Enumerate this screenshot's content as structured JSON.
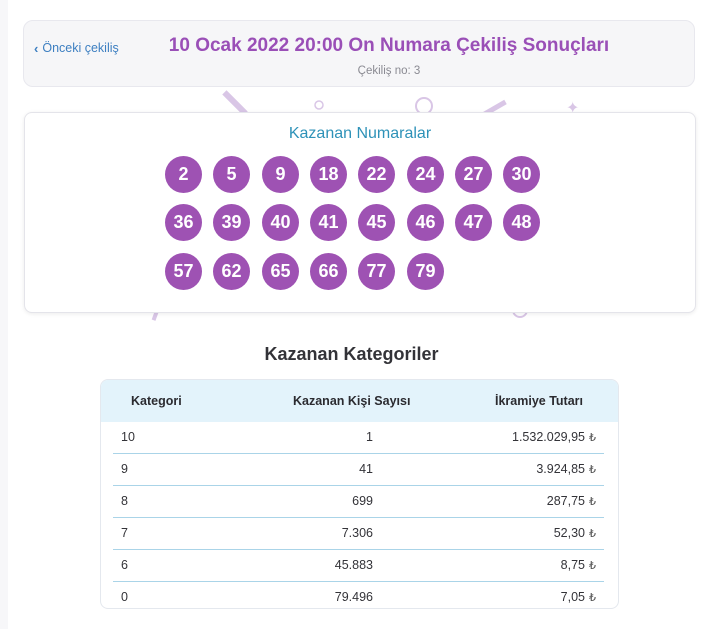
{
  "header": {
    "back_label": "Önceki çekiliş",
    "title": "10 Ocak 2022 20:00 On Numara Çekiliş Sonuçları",
    "subtitle": "Çekiliş no: 3"
  },
  "numbers": {
    "title": "Kazanan Numaralar",
    "balls": [
      "2",
      "5",
      "9",
      "18",
      "22",
      "24",
      "27",
      "30",
      "36",
      "39",
      "40",
      "41",
      "45",
      "46",
      "47",
      "48",
      "57",
      "62",
      "65",
      "66",
      "77",
      "79"
    ],
    "ball_color": "#9e52b3"
  },
  "categories": {
    "title": "Kazanan Kategoriler",
    "headers": [
      "Kategori",
      "Kazanan Kişi Sayısı",
      "İkramiye Tutarı"
    ],
    "rows": [
      {
        "category": "10",
        "winners": "1",
        "prize": "1.532.029,95"
      },
      {
        "category": "9",
        "winners": "41",
        "prize": "3.924,85"
      },
      {
        "category": "8",
        "winners": "699",
        "prize": "287,75"
      },
      {
        "category": "7",
        "winners": "7.306",
        "prize": "52,30"
      },
      {
        "category": "6",
        "winners": "45.883",
        "prize": "8,75"
      },
      {
        "category": "0",
        "winners": "79.496",
        "prize": "7,05"
      }
    ],
    "currency_symbol": "₺"
  },
  "colors": {
    "accent_purple": "#9a4fb7",
    "link_blue": "#3d7fc1",
    "numbers_title": "#2e92b8",
    "table_header_bg": "#e3f3fb"
  }
}
